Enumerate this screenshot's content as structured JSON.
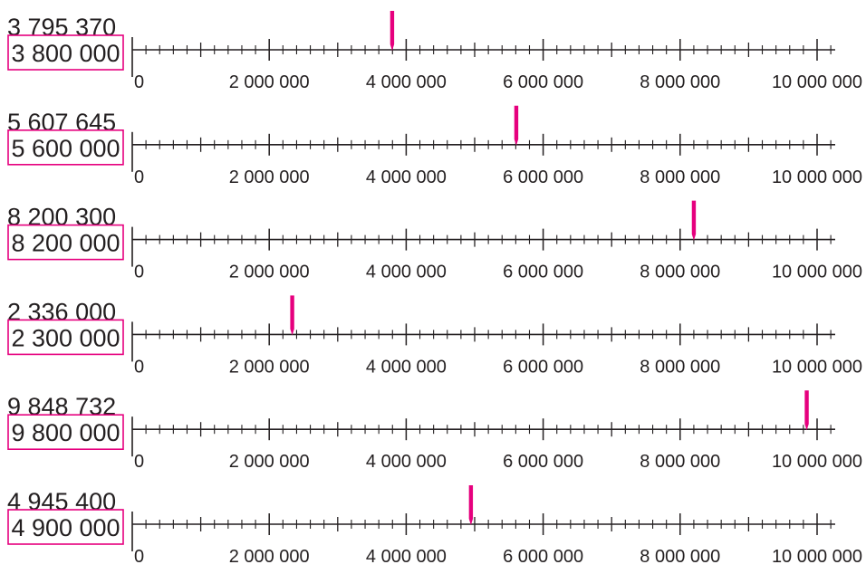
{
  "colors": {
    "ink": "#231f20",
    "marker": "#e6007e",
    "box_border": "#e6007e"
  },
  "scale": {
    "min": 0,
    "max": 10000000,
    "minor_step": 200000,
    "major_step": 1000000,
    "labels": [
      "0",
      "2 000 000",
      "4 000 000",
      "6 000 000",
      "8 000 000",
      "10 000 000"
    ]
  },
  "rows": [
    {
      "number": "3 795 370",
      "value": 3795370,
      "rounded": "3 800 000"
    },
    {
      "number": "5 607 645",
      "value": 5607645,
      "rounded": "5 600 000"
    },
    {
      "number": "8 200 300",
      "value": 8200300,
      "rounded": "8 200 000"
    },
    {
      "number": "2 336 000",
      "value": 2336000,
      "rounded": "2 300 000"
    },
    {
      "number": "9 848 732",
      "value": 9848732,
      "rounded": "9 800 000"
    },
    {
      "number": "4 945 400",
      "value": 4945400,
      "rounded": "4 900 000"
    }
  ]
}
